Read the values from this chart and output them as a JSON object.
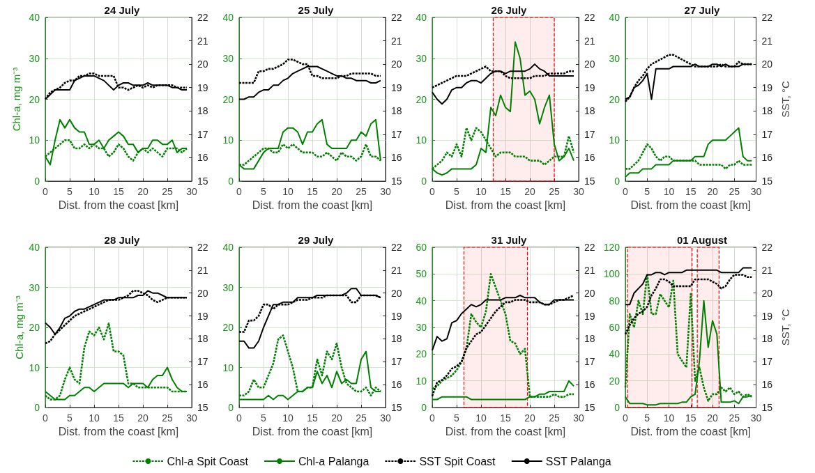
{
  "chart_data": [
    {
      "type": "line",
      "title": "24 July",
      "xlabel": "Dist. from the coast [km]",
      "ylabel": "Chl-a, mg m⁻³",
      "xlim": [
        0,
        30
      ],
      "xticks": [
        0,
        5,
        10,
        15,
        20,
        25,
        30
      ],
      "ylim": [
        0,
        40
      ],
      "yticks": [
        0,
        10,
        20,
        30,
        40
      ],
      "y2lim": [
        15,
        22
      ],
      "y2ticks": [
        15,
        16,
        17,
        18,
        19,
        20,
        21,
        22
      ],
      "grid": true,
      "marker": "none",
      "legend": false,
      "x": [
        0,
        1,
        2,
        3,
        4,
        5,
        6,
        7,
        8,
        9,
        10,
        11,
        12,
        13,
        14,
        15,
        16,
        17,
        18,
        19,
        20,
        21,
        22,
        23,
        24,
        25,
        26,
        27,
        28,
        29
      ],
      "series": [
        {
          "color": "#008000",
          "line_style": "dotted",
          "values": [
            6,
            7,
            8,
            9,
            10,
            10,
            8,
            8,
            9,
            8,
            9,
            8,
            8,
            6,
            7,
            9,
            8,
            6,
            5,
            7,
            8,
            7,
            8,
            7,
            6,
            8,
            8,
            8,
            7,
            8
          ]
        },
        {
          "color": "#008000",
          "line_style": "solid",
          "values": [
            6,
            4,
            10,
            15,
            13,
            15,
            13,
            12,
            12,
            9,
            9,
            10,
            8,
            10,
            11,
            12,
            11,
            9,
            9,
            7,
            8,
            8,
            10,
            10,
            9,
            9,
            10,
            7,
            8,
            8
          ]
        },
        {
          "color": "#000000",
          "line_style": "dotted",
          "axis": "y2",
          "values": [
            18.5,
            18.8,
            18.9,
            19.0,
            19.2,
            19.3,
            19.3,
            19.5,
            19.5,
            19.6,
            19.6,
            19.5,
            19.5,
            19.5,
            19.5,
            19.0,
            19.0,
            18.9,
            19.0,
            19.1,
            19.0,
            19.1,
            19.0,
            19.1,
            19.1,
            19.1,
            19.1,
            19.0,
            19.0,
            19.0
          ]
        },
        {
          "color": "#000000",
          "line_style": "solid",
          "axis": "y2",
          "values": [
            18.5,
            18.7,
            18.9,
            18.9,
            18.9,
            18.9,
            19.3,
            19.4,
            19.5,
            19.5,
            19.5,
            19.4,
            19.3,
            19.1,
            18.9,
            19.1,
            19.2,
            19.2,
            19.1,
            19.1,
            19.1,
            19.2,
            19.1,
            19.1,
            19.1,
            19.1,
            19.0,
            19.0,
            18.9,
            18.9
          ]
        }
      ]
    },
    {
      "type": "line",
      "title": "25 July",
      "xlabel": "Dist. from the coast [km]",
      "xlim": [
        0,
        30
      ],
      "xticks": [
        0,
        5,
        10,
        15,
        20,
        25,
        30
      ],
      "ylim": [
        0,
        40
      ],
      "yticks": [
        0,
        10,
        20,
        30,
        40
      ],
      "y2lim": [
        15,
        22
      ],
      "y2ticks": [
        15,
        16,
        17,
        18,
        19,
        20,
        21,
        22
      ],
      "grid": true,
      "marker": "none",
      "legend": false,
      "x": [
        0,
        1,
        2,
        3,
        4,
        5,
        6,
        7,
        8,
        9,
        10,
        11,
        12,
        13,
        14,
        15,
        16,
        17,
        18,
        19,
        20,
        21,
        22,
        23,
        24,
        25,
        26,
        27,
        28,
        29
      ],
      "series": [
        {
          "color": "#008000",
          "line_style": "dotted",
          "values": [
            4,
            4,
            5,
            6,
            7,
            8,
            8,
            7,
            7,
            9,
            8,
            9,
            8,
            7,
            7,
            7,
            6,
            6,
            7,
            6,
            5,
            7,
            6,
            6,
            5,
            6,
            9,
            6,
            6,
            5
          ]
        },
        {
          "color": "#008000",
          "line_style": "solid",
          "values": [
            4,
            3,
            3,
            3,
            5,
            7,
            8,
            8,
            8,
            12,
            13,
            13,
            12,
            9,
            12,
            12,
            14,
            15,
            9,
            8,
            8,
            8,
            8,
            10,
            10,
            12,
            11,
            14,
            15,
            5
          ]
        },
        {
          "color": "#000000",
          "line_style": "dotted",
          "axis": "y2",
          "values": [
            19.2,
            19.2,
            19.2,
            19.2,
            19.7,
            19.7,
            19.8,
            19.8,
            19.9,
            20.0,
            20.2,
            20.2,
            20.1,
            20.0,
            20.0,
            19.5,
            19.5,
            19.4,
            19.4,
            19.4,
            19.4,
            19.5,
            19.5,
            19.6,
            19.6,
            19.6,
            19.6,
            19.6,
            19.5,
            19.5
          ]
        },
        {
          "color": "#000000",
          "line_style": "solid",
          "axis": "y2",
          "values": [
            18.5,
            18.5,
            18.6,
            18.6,
            18.8,
            18.9,
            18.9,
            19.1,
            19.1,
            19.3,
            19.4,
            19.6,
            19.7,
            19.8,
            19.9,
            19.9,
            19.9,
            19.8,
            19.7,
            19.6,
            19.5,
            19.5,
            19.4,
            19.4,
            19.3,
            19.3,
            19.3,
            19.2,
            19.2,
            19.3
          ]
        }
      ]
    },
    {
      "type": "line",
      "title": "26 July",
      "xlabel": "Dist. from the coast [km]",
      "xlim": [
        0,
        30
      ],
      "xticks": [
        0,
        5,
        10,
        15,
        20,
        25,
        30
      ],
      "ylim": [
        0,
        40
      ],
      "yticks": [
        0,
        10,
        20,
        30,
        40
      ],
      "y2lim": [
        15,
        22
      ],
      "y2ticks": [
        15,
        16,
        17,
        18,
        19,
        20,
        21,
        22
      ],
      "grid": true,
      "marker": "none",
      "legend": false,
      "bands": [
        {
          "axis": "x",
          "from": 12.5,
          "to": 25,
          "color": "#ff0000"
        }
      ],
      "x": [
        0,
        1,
        2,
        3,
        4,
        5,
        6,
        7,
        8,
        9,
        10,
        11,
        12,
        13,
        14,
        15,
        16,
        17,
        18,
        19,
        20,
        21,
        22,
        23,
        24,
        25,
        26,
        27,
        28,
        29
      ],
      "series": [
        {
          "color": "#008000",
          "line_style": "dotted",
          "values": [
            3,
            4,
            5,
            7,
            6,
            9,
            6,
            13,
            10,
            13,
            12,
            10,
            8,
            6,
            7,
            7,
            7,
            6,
            6,
            6,
            5,
            5,
            5,
            4,
            5,
            6,
            6,
            6,
            11,
            7
          ]
        },
        {
          "color": "#008000",
          "line_style": "solid",
          "values": [
            3,
            2,
            1.5,
            2,
            3,
            3,
            3,
            3,
            3,
            4,
            8,
            7,
            18,
            16,
            21,
            18,
            17,
            34,
            30,
            21,
            22,
            20,
            14,
            18,
            21,
            9,
            5,
            6,
            8,
            5
          ]
        },
        {
          "color": "#000000",
          "line_style": "dotted",
          "axis": "y2",
          "values": [
            19.0,
            19.1,
            19.2,
            19.3,
            19.4,
            19.5,
            19.5,
            19.5,
            19.6,
            19.7,
            19.8,
            19.9,
            19.7,
            19.7,
            19.7,
            19.5,
            19.4,
            19.4,
            19.4,
            19.4,
            19.4,
            19.5,
            19.5,
            19.5,
            19.6,
            19.6,
            19.6,
            19.6,
            19.7,
            19.7
          ]
        },
        {
          "color": "#000000",
          "line_style": "solid",
          "axis": "y2",
          "values": [
            18.8,
            18.5,
            18.3,
            18.5,
            18.9,
            19.0,
            19.0,
            19.2,
            19.3,
            19.3,
            19.2,
            19.4,
            19.6,
            19.7,
            19.7,
            19.6,
            19.7,
            19.7,
            19.7,
            19.7,
            19.8,
            20.0,
            19.8,
            19.7,
            19.5,
            19.5,
            19.5,
            19.5,
            19.5,
            19.5
          ]
        }
      ]
    },
    {
      "type": "line",
      "title": "27 July",
      "xlabel": "Dist. from the coast [km]",
      "y2label": "SST, °C",
      "xlim": [
        0,
        30
      ],
      "xticks": [
        0,
        5,
        10,
        15,
        20,
        25,
        30
      ],
      "ylim": [
        0,
        40
      ],
      "yticks": [
        0,
        10,
        20,
        30,
        40
      ],
      "y2lim": [
        15,
        22
      ],
      "y2ticks": [
        15,
        16,
        17,
        18,
        19,
        20,
        21,
        22
      ],
      "grid": true,
      "marker": "none",
      "legend": false,
      "x": [
        0,
        1,
        2,
        3,
        4,
        5,
        6,
        7,
        8,
        9,
        10,
        11,
        12,
        13,
        14,
        15,
        16,
        17,
        18,
        19,
        20,
        21,
        22,
        23,
        24,
        25,
        26,
        27,
        28,
        29
      ],
      "series": [
        {
          "color": "#008000",
          "line_style": "dotted",
          "values": [
            3,
            3,
            4,
            5,
            7,
            9,
            8,
            6,
            5,
            6,
            6,
            5,
            5,
            5,
            5,
            5,
            5,
            4,
            4,
            4,
            4,
            4,
            4,
            3,
            4,
            4,
            5,
            4,
            4,
            4
          ]
        },
        {
          "color": "#008000",
          "line_style": "solid",
          "values": [
            1,
            2,
            2,
            2,
            3,
            3,
            3,
            4,
            4,
            4,
            4,
            5,
            5,
            5,
            5,
            5,
            6,
            6,
            6,
            9,
            10,
            10,
            10,
            10,
            11,
            12,
            13,
            6,
            5,
            5
          ]
        },
        {
          "color": "#000000",
          "line_style": "dotted",
          "axis": "y2",
          "values": [
            18.4,
            18.6,
            19.0,
            19.3,
            19.5,
            19.8,
            20.0,
            20.1,
            20.2,
            20.3,
            20.4,
            20.4,
            20.3,
            20.2,
            20.1,
            20.0,
            19.9,
            19.9,
            19.9,
            19.9,
            19.9,
            19.9,
            20.0,
            19.9,
            19.9,
            19.9,
            20.1,
            20.0,
            20.0,
            20.0
          ]
        },
        {
          "color": "#000000",
          "line_style": "solid",
          "axis": "y2",
          "values": [
            18.5,
            18.6,
            19.0,
            19.1,
            19.3,
            19.6,
            18.5,
            19.8,
            19.8,
            19.8,
            19.8,
            19.9,
            19.9,
            19.9,
            19.9,
            19.9,
            20.0,
            19.9,
            19.9,
            19.9,
            20.0,
            20.0,
            19.9,
            20.0,
            19.9,
            19.9,
            19.9,
            20.0,
            20.0,
            20.0
          ]
        }
      ]
    },
    {
      "type": "line",
      "title": "28 July",
      "xlabel": "Dist. from the coast [km]",
      "ylabel": "Chl-a, mg m⁻³",
      "xlim": [
        0,
        30
      ],
      "xticks": [
        0,
        5,
        10,
        15,
        20,
        25,
        30
      ],
      "ylim": [
        0,
        40
      ],
      "yticks": [
        0,
        10,
        20,
        30,
        40
      ],
      "y2lim": [
        15,
        22
      ],
      "y2ticks": [
        15,
        16,
        17,
        18,
        19,
        20,
        21,
        22
      ],
      "grid": true,
      "marker": "none",
      "legend": "bottom",
      "x": [
        0,
        1,
        2,
        3,
        4,
        5,
        6,
        7,
        8,
        9,
        10,
        11,
        12,
        13,
        14,
        15,
        16,
        17,
        18,
        19,
        20,
        21,
        22,
        23,
        24,
        25,
        26,
        27,
        28,
        29
      ],
      "series": [
        {
          "name": "Chl-a Spit Coast",
          "color": "#008000",
          "line_style": "dotted",
          "values": [
            3,
            2,
            2,
            3,
            7,
            10,
            7,
            6,
            15,
            19,
            18,
            20,
            17,
            21,
            14,
            14,
            13,
            6,
            6,
            5,
            5,
            5,
            5,
            5,
            5,
            5,
            4,
            4,
            4,
            4
          ]
        },
        {
          "name": "Chl-a Palanga",
          "color": "#008000",
          "line_style": "solid",
          "values": [
            4,
            3,
            2,
            2,
            2,
            3,
            3,
            4,
            5,
            5,
            4,
            5,
            6,
            6,
            6,
            6,
            6,
            5,
            6,
            6,
            6,
            5,
            7,
            8,
            8,
            10,
            7,
            5,
            4,
            4
          ]
        },
        {
          "name": "SST Spit Coast",
          "color": "#000000",
          "line_style": "dotted",
          "axis": "y2",
          "values": [
            17.8,
            17.9,
            18.2,
            18.4,
            18.6,
            18.8,
            19.0,
            19.1,
            19.2,
            19.3,
            19.4,
            19.5,
            19.6,
            19.7,
            19.7,
            19.7,
            19.8,
            19.9,
            20.1,
            20.1,
            20.0,
            19.9,
            19.7,
            19.6,
            19.7,
            19.8,
            19.8,
            19.8,
            19.8,
            19.8
          ]
        },
        {
          "name": "SST Palanga",
          "color": "#000000",
          "line_style": "solid",
          "axis": "y2",
          "values": [
            18.7,
            18.5,
            18.2,
            18.5,
            18.9,
            19.0,
            19.2,
            19.3,
            19.3,
            19.4,
            19.5,
            19.6,
            19.7,
            19.7,
            19.7,
            19.8,
            19.8,
            19.8,
            19.8,
            19.9,
            19.9,
            20.1,
            20.0,
            20.0,
            19.9,
            19.8,
            19.8,
            19.8,
            19.8,
            19.8
          ]
        }
      ]
    },
    {
      "type": "line",
      "title": "29 July",
      "xlabel": "Dist. from the coast [km]",
      "xlim": [
        0,
        30
      ],
      "xticks": [
        0,
        5,
        10,
        15,
        20,
        25,
        30
      ],
      "ylim": [
        0,
        40
      ],
      "yticks": [
        0,
        10,
        20,
        30,
        40
      ],
      "y2lim": [
        15,
        22
      ],
      "y2ticks": [
        15,
        16,
        17,
        18,
        19,
        20,
        21,
        22
      ],
      "grid": true,
      "marker": "none",
      "legend": false,
      "x": [
        0,
        1,
        2,
        3,
        4,
        5,
        6,
        7,
        8,
        9,
        10,
        11,
        12,
        13,
        14,
        15,
        16,
        17,
        18,
        19,
        20,
        21,
        22,
        23,
        24,
        25,
        26,
        27,
        28,
        29
      ],
      "series": [
        {
          "color": "#008000",
          "line_style": "dotted",
          "values": [
            3,
            3,
            4,
            7,
            5,
            5,
            8,
            11,
            17,
            18,
            14,
            10,
            4,
            4,
            5,
            5,
            12,
            8,
            14,
            12,
            16,
            10,
            6,
            5,
            4,
            4,
            5,
            3,
            5,
            4
          ]
        },
        {
          "color": "#008000",
          "line_style": "solid",
          "values": [
            2,
            2,
            2,
            2,
            2,
            2,
            3,
            2,
            3,
            3,
            2,
            3,
            4,
            4,
            5,
            5,
            9,
            6,
            8,
            5,
            9,
            6,
            7,
            6,
            6,
            12,
            14,
            5,
            4,
            4
          ]
        },
        {
          "color": "#000000",
          "line_style": "dotted",
          "axis": "y2",
          "values": [
            18.3,
            18.3,
            18.8,
            18.8,
            19.0,
            19.5,
            19.5,
            19.3,
            19.5,
            19.5,
            19.5,
            19.6,
            19.7,
            19.7,
            19.7,
            19.8,
            19.8,
            19.8,
            19.9,
            19.9,
            19.9,
            19.9,
            19.9,
            19.6,
            19.6,
            19.9,
            19.9,
            19.9,
            19.9,
            19.8
          ]
        },
        {
          "color": "#000000",
          "line_style": "solid",
          "axis": "y2",
          "values": [
            17.9,
            17.9,
            17.6,
            17.6,
            17.9,
            18.5,
            19.0,
            19.5,
            19.5,
            19.6,
            19.6,
            19.6,
            19.8,
            19.8,
            19.8,
            19.8,
            19.9,
            19.9,
            19.9,
            19.9,
            19.9,
            19.9,
            20.0,
            20.2,
            20.2,
            19.9,
            19.9,
            19.9,
            19.9,
            19.8
          ]
        }
      ]
    },
    {
      "type": "line",
      "title": "31 July",
      "xlabel": "Dist. from the coast [km]",
      "xlim": [
        0,
        30
      ],
      "xticks": [
        0,
        5,
        10,
        15,
        20,
        25,
        30
      ],
      "ylim": [
        0,
        60
      ],
      "yticks": [
        0,
        10,
        20,
        30,
        40,
        50,
        60
      ],
      "y2lim": [
        15,
        22
      ],
      "y2ticks": [
        15,
        16,
        17,
        18,
        19,
        20,
        21,
        22
      ],
      "grid": true,
      "marker": "none",
      "legend": false,
      "bands": [
        {
          "axis": "x",
          "from": 6.5,
          "to": 19.5,
          "color": "#ff0000"
        }
      ],
      "x": [
        0,
        1,
        2,
        3,
        4,
        5,
        6,
        7,
        8,
        9,
        10,
        11,
        12,
        13,
        14,
        15,
        16,
        17,
        18,
        19,
        20,
        21,
        22,
        23,
        24,
        25,
        26,
        27,
        28,
        29
      ],
      "series": [
        {
          "color": "#008000",
          "line_style": "dotted",
          "values": [
            7,
            8,
            10,
            11,
            12,
            14,
            17,
            22,
            35,
            32,
            30,
            36,
            50,
            45,
            40,
            35,
            25,
            24,
            20,
            22,
            4,
            4,
            4,
            4,
            4,
            5,
            4,
            4,
            5,
            5
          ]
        },
        {
          "color": "#008000",
          "line_style": "solid",
          "values": [
            3,
            3,
            4,
            4,
            4,
            4,
            4,
            4,
            3,
            3,
            3,
            3,
            3,
            3,
            3,
            3,
            3,
            3,
            3,
            3,
            4,
            4,
            5,
            5,
            6,
            6,
            6,
            6,
            10,
            8
          ]
        },
        {
          "color": "#000000",
          "line_style": "dotted",
          "axis": "y2",
          "values": [
            15.5,
            16.1,
            16.2,
            16.4,
            16.7,
            16.8,
            17.0,
            17.6,
            17.9,
            18.2,
            18.3,
            18.6,
            18.9,
            19.2,
            19.4,
            19.6,
            19.6,
            19.7,
            19.7,
            19.7,
            19.6,
            19.6,
            19.6,
            19.5,
            19.5,
            19.6,
            19.7,
            19.7,
            19.8,
            19.9
          ]
        },
        {
          "color": "#000000",
          "line_style": "solid",
          "axis": "y2",
          "values": [
            17.5,
            18.1,
            17.9,
            18.0,
            18.7,
            18.8,
            19.1,
            19.3,
            19.5,
            19.4,
            19.5,
            19.7,
            19.7,
            19.7,
            19.7,
            19.8,
            19.8,
            19.8,
            19.9,
            19.8,
            19.8,
            19.8,
            19.6,
            19.5,
            19.5,
            19.7,
            19.7,
            19.7,
            19.7,
            19.7
          ]
        }
      ]
    },
    {
      "type": "line",
      "title": "01 August",
      "xlabel": "Dist. from the coast [km]",
      "y2label": "SST, °C",
      "xlim": [
        0,
        30
      ],
      "xticks": [
        0,
        5,
        10,
        15,
        20,
        25,
        30
      ],
      "ylim": [
        0,
        120
      ],
      "yticks": [
        0,
        20,
        40,
        60,
        80,
        100,
        120
      ],
      "y2lim": [
        15,
        22
      ],
      "y2ticks": [
        15,
        16,
        17,
        18,
        19,
        20,
        21,
        22
      ],
      "grid": true,
      "marker": "none",
      "legend": false,
      "bands": [
        {
          "axis": "x",
          "from": 0.5,
          "to": 15.3,
          "color": "#ff0000"
        },
        {
          "axis": "x",
          "from": 16.5,
          "to": 21.5,
          "color": "#ff0000"
        }
      ],
      "x": [
        0,
        1,
        2,
        3,
        4,
        5,
        6,
        7,
        8,
        9,
        10,
        11,
        12,
        13,
        14,
        15,
        16,
        17,
        18,
        19,
        20,
        21,
        22,
        23,
        24,
        25,
        26,
        27,
        28,
        29
      ],
      "series": [
        {
          "color": "#008000",
          "line_style": "dotted",
          "values": [
            15,
            70,
            60,
            80,
            70,
            100,
            70,
            70,
            85,
            80,
            75,
            95,
            40,
            35,
            30,
            85,
            20,
            30,
            15,
            5,
            10,
            10,
            15,
            12,
            15,
            10,
            12,
            8,
            10,
            8
          ]
        },
        {
          "color": "#008000",
          "line_style": "solid",
          "values": [
            8,
            3,
            3,
            3,
            3,
            2,
            2,
            2,
            3,
            3,
            3,
            3,
            3,
            4,
            4,
            8,
            10,
            35,
            80,
            45,
            65,
            55,
            4,
            4,
            4,
            5,
            3,
            8,
            8,
            9
          ]
        },
        {
          "color": "#000000",
          "line_style": "dotted",
          "axis": "y2",
          "values": [
            18.2,
            18.6,
            18.9,
            19.1,
            19.2,
            19.4,
            19.9,
            20.2,
            20.6,
            20.6,
            20.5,
            20.3,
            20.3,
            20.3,
            20.3,
            20.3,
            20.6,
            20.6,
            20.6,
            20.6,
            20.5,
            20.4,
            20.2,
            20.3,
            20.6,
            20.8,
            20.8,
            20.8,
            20.7,
            20.7
          ]
        },
        {
          "color": "#000000",
          "line_style": "solid",
          "axis": "y2",
          "values": [
            19.5,
            19.5,
            20.0,
            20.2,
            20.4,
            20.8,
            20.8,
            20.9,
            20.9,
            20.8,
            20.9,
            20.9,
            20.9,
            20.9,
            21.0,
            21.0,
            21.0,
            21.0,
            21.0,
            21.0,
            21.0,
            21.0,
            20.9,
            20.9,
            20.9,
            20.9,
            20.9,
            21.1,
            21.1,
            21.1
          ]
        }
      ]
    }
  ]
}
